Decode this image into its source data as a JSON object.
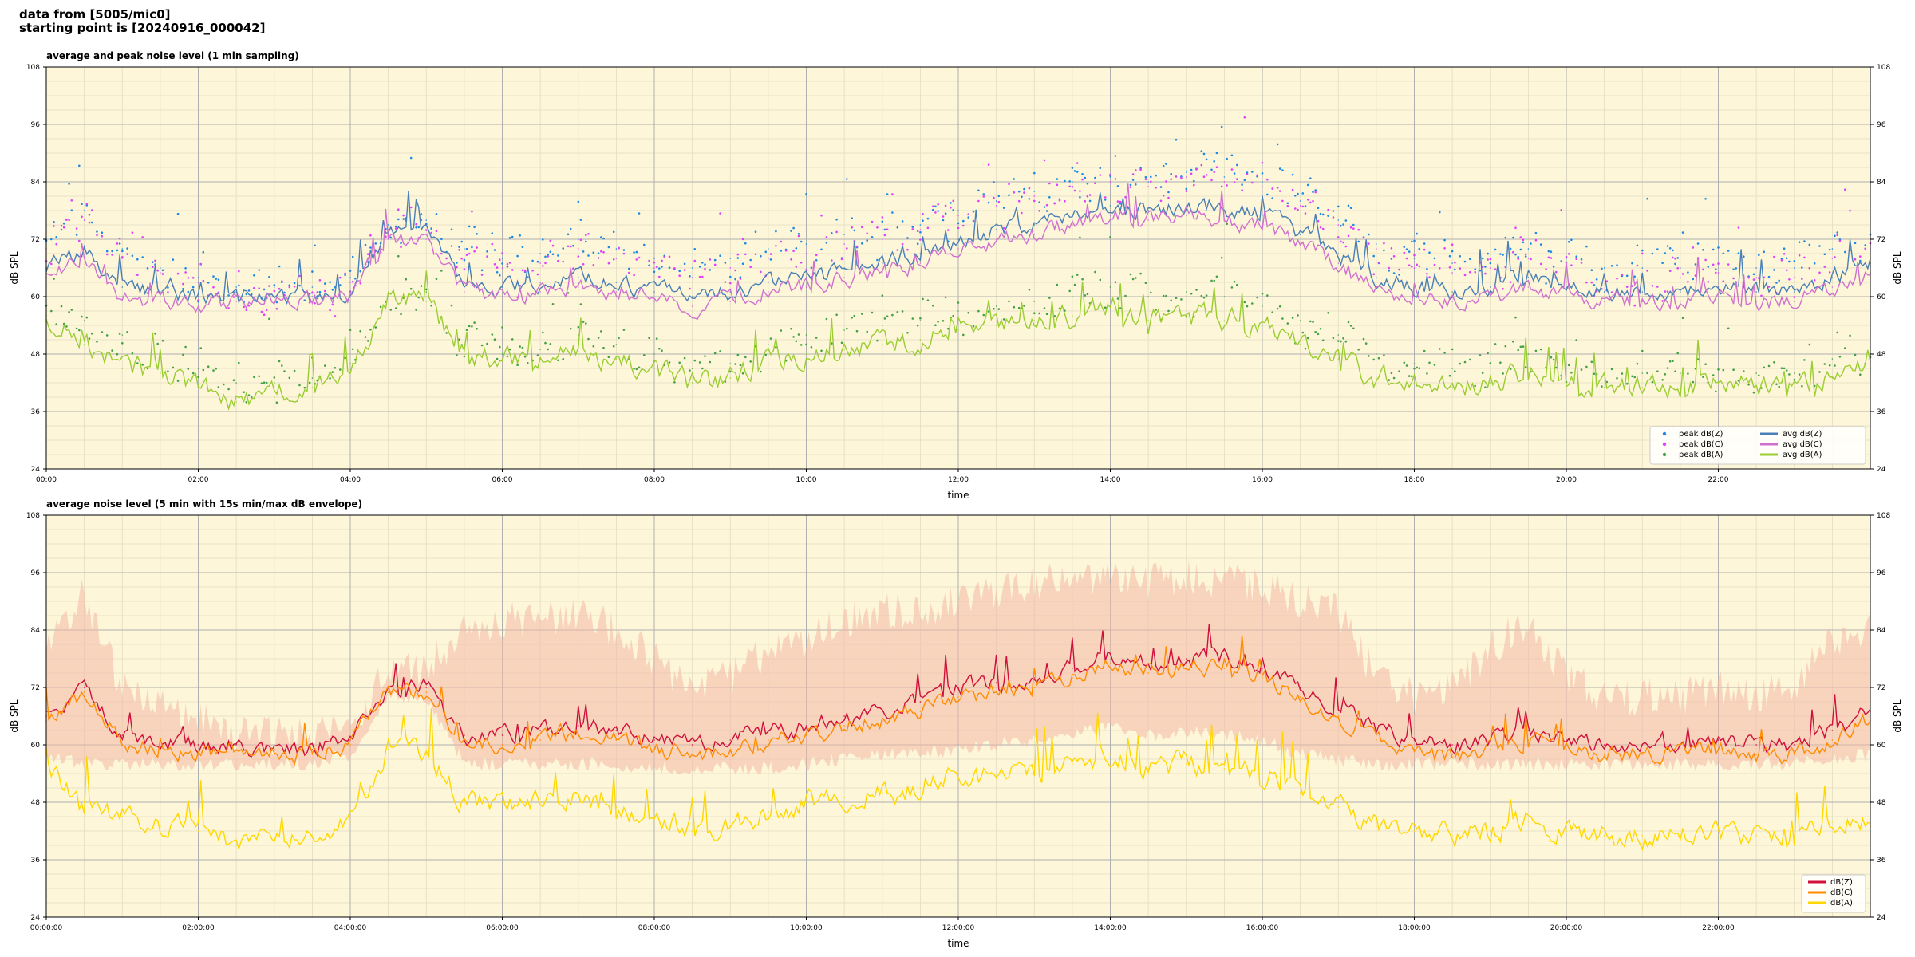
{
  "header": {
    "line1": "data from [5005/mic0]",
    "line2": "starting point is [20240916_000042]"
  },
  "colors": {
    "background": "#fdf6d8",
    "grid_major": "#b0b0b0",
    "grid_minor": "#e2dcc2",
    "peak_z": "#1e88e5",
    "peak_c": "#e040fb",
    "peak_a": "#43a047",
    "avg_z": "#4a7fb5",
    "avg_c": "#d070d0",
    "avg_a": "#9acd32",
    "db_z": "#d0103a",
    "db_c": "#ff8c00",
    "db_a": "#ffd700",
    "envelope": "#f4b8a8"
  },
  "chart_data": [
    {
      "type": "line",
      "title": "average and peak noise level (1 min sampling)",
      "xlabel": "time",
      "ylabel": "dB SPL",
      "ylabel_right": "dB SPL",
      "xlim": [
        0,
        24
      ],
      "ylim": [
        24,
        108
      ],
      "grid": true,
      "legend_position": "bottom-right",
      "legend_columns": 2,
      "yticks": [
        "24",
        "36",
        "48",
        "60",
        "72",
        "84",
        "96",
        "108"
      ],
      "xticks": [
        "00:00",
        "02:00",
        "04:00",
        "06:00",
        "08:00",
        "10:00",
        "12:00",
        "14:00",
        "16:00",
        "18:00",
        "20:00",
        "22:00"
      ],
      "x": [
        0,
        0.5,
        1,
        1.5,
        2,
        2.5,
        3,
        3.5,
        4,
        4.5,
        5,
        5.5,
        6,
        6.5,
        7,
        7.5,
        8,
        8.5,
        9,
        9.5,
        10,
        10.5,
        11,
        11.5,
        12,
        12.5,
        13,
        13.5,
        14,
        14.5,
        15,
        15.5,
        16,
        16.5,
        17,
        17.5,
        18,
        18.5,
        19,
        19.5,
        20,
        20.5,
        21,
        21.5,
        22,
        22.5,
        23,
        23.5,
        24
      ],
      "series": [
        {
          "name": "peak dB(Z)",
          "kind": "points",
          "values": [
            72,
            78,
            70,
            66,
            64,
            62,
            62,
            62,
            64,
            75,
            76,
            70,
            68,
            69,
            72,
            70,
            68,
            66,
            68,
            70,
            71,
            73,
            74,
            75,
            78,
            80,
            82,
            84,
            85,
            84,
            86,
            85,
            84,
            80,
            76,
            71,
            68,
            67,
            68,
            70,
            68,
            66,
            66,
            66,
            67,
            66,
            66,
            70,
            72
          ]
        },
        {
          "name": "peak dB(C)",
          "kind": "points",
          "values": [
            70,
            76,
            68,
            65,
            63,
            61,
            61,
            61,
            63,
            74,
            75,
            68,
            66,
            67,
            70,
            68,
            66,
            64,
            66,
            68,
            69,
            71,
            72,
            74,
            77,
            79,
            81,
            83,
            84,
            83,
            85,
            84,
            83,
            79,
            75,
            70,
            66,
            65,
            66,
            68,
            66,
            64,
            64,
            64,
            65,
            64,
            64,
            68,
            70
          ]
        },
        {
          "name": "peak dB(A)",
          "kind": "points",
          "values": [
            58,
            55,
            52,
            48,
            45,
            42,
            42,
            43,
            46,
            60,
            61,
            50,
            48,
            49,
            52,
            50,
            48,
            45,
            46,
            50,
            52,
            53,
            54,
            55,
            57,
            58,
            59,
            60,
            62,
            60,
            61,
            60,
            58,
            55,
            52,
            48,
            46,
            45,
            46,
            48,
            46,
            44,
            44,
            44,
            45,
            44,
            44,
            47,
            48
          ]
        },
        {
          "name": "avg dB(Z)",
          "kind": "line",
          "values": [
            66,
            70,
            62,
            61,
            60,
            60,
            60,
            60,
            61,
            73,
            73,
            63,
            62,
            63,
            64,
            63,
            61,
            60,
            61,
            63,
            64,
            66,
            67,
            69,
            72,
            74,
            75,
            77,
            79,
            78,
            79,
            78,
            77,
            73,
            69,
            64,
            62,
            61,
            62,
            64,
            62,
            61,
            61,
            61,
            62,
            61,
            61,
            64,
            67
          ]
        },
        {
          "name": "avg dB(C)",
          "kind": "line",
          "values": [
            64,
            68,
            60,
            59,
            58,
            59,
            59,
            59,
            60,
            72,
            72,
            61,
            60,
            61,
            62,
            61,
            59,
            58,
            59,
            61,
            62,
            64,
            65,
            67,
            70,
            72,
            73,
            75,
            77,
            76,
            77,
            76,
            75,
            71,
            67,
            62,
            60,
            59,
            60,
            62,
            60,
            59,
            59,
            59,
            60,
            59,
            59,
            62,
            65
          ]
        },
        {
          "name": "avg dB(A)",
          "kind": "line",
          "values": [
            56,
            50,
            45,
            44,
            41,
            38,
            39,
            41,
            44,
            60,
            59,
            48,
            47,
            47,
            48,
            47,
            45,
            42,
            43,
            46,
            48,
            49,
            50,
            51,
            53,
            54,
            55,
            56,
            58,
            55,
            56,
            55,
            54,
            50,
            47,
            43,
            42,
            41,
            42,
            44,
            42,
            41,
            41,
            41,
            42,
            41,
            41,
            43,
            45
          ]
        }
      ]
    },
    {
      "type": "line",
      "title": "average noise level (5 min with 15s min/max dB envelope)",
      "xlabel": "time",
      "ylabel": "dB SPL",
      "ylabel_right": "dB SPL",
      "xlim": [
        0,
        24
      ],
      "ylim": [
        24,
        108
      ],
      "grid": true,
      "legend_position": "bottom-right",
      "legend_columns": 1,
      "yticks": [
        "24",
        "36",
        "48",
        "60",
        "72",
        "84",
        "96",
        "108"
      ],
      "xticks": [
        "00:00:00",
        "02:00:00",
        "04:00:00",
        "06:00:00",
        "08:00:00",
        "10:00:00",
        "12:00:00",
        "14:00:00",
        "16:00:00",
        "18:00:00",
        "20:00:00",
        "22:00:00"
      ],
      "x": [
        0,
        0.5,
        1,
        1.5,
        2,
        2.5,
        3,
        3.5,
        4,
        4.5,
        5,
        5.5,
        6,
        6.5,
        7,
        7.5,
        8,
        8.5,
        9,
        9.5,
        10,
        10.5,
        11,
        11.5,
        12,
        12.5,
        13,
        13.5,
        14,
        14.5,
        15,
        15.5,
        16,
        16.5,
        17,
        17.5,
        18,
        18.5,
        19,
        19.5,
        20,
        20.5,
        21,
        21.5,
        22,
        22.5,
        23,
        23.5,
        24
      ],
      "envelope": {
        "min": [
          58,
          56,
          56,
          56,
          56,
          56,
          56,
          56,
          58,
          70,
          70,
          56,
          56,
          56,
          56,
          56,
          55,
          55,
          55,
          55,
          56,
          57,
          58,
          58,
          59,
          60,
          61,
          62,
          64,
          62,
          63,
          62,
          61,
          58,
          57,
          56,
          56,
          56,
          56,
          56,
          56,
          56,
          56,
          56,
          56,
          56,
          56,
          57,
          58
        ],
        "max": [
          80,
          92,
          72,
          68,
          66,
          62,
          62,
          62,
          64,
          76,
          76,
          84,
          86,
          86,
          88,
          84,
          78,
          72,
          74,
          80,
          82,
          86,
          88,
          88,
          90,
          92,
          94,
          94,
          95,
          94,
          95,
          94,
          93,
          90,
          88,
          74,
          70,
          72,
          80,
          86,
          74,
          70,
          70,
          70,
          72,
          70,
          72,
          82,
          84
        ]
      },
      "series": [
        {
          "name": "dB(Z)",
          "values": [
            66,
            72,
            62,
            61,
            60,
            60,
            59,
            59,
            61,
            72,
            72,
            62,
            62,
            63,
            64,
            63,
            61,
            60,
            61,
            63,
            64,
            66,
            67,
            69,
            72,
            73,
            74,
            76,
            79,
            77,
            78,
            78,
            76,
            72,
            68,
            63,
            61,
            60,
            61,
            63,
            61,
            60,
            60,
            60,
            61,
            60,
            60,
            63,
            67
          ]
        },
        {
          "name": "dB(C)",
          "values": [
            65,
            71,
            60,
            59,
            58,
            59,
            58,
            58,
            60,
            71,
            71,
            60,
            60,
            61,
            62,
            61,
            59,
            58,
            59,
            61,
            62,
            64,
            65,
            67,
            70,
            71,
            72,
            74,
            77,
            75,
            76,
            76,
            74,
            70,
            66,
            61,
            59,
            58,
            59,
            61,
            59,
            58,
            58,
            58,
            59,
            58,
            58,
            61,
            65
          ]
        },
        {
          "name": "dB(A)",
          "values": [
            56,
            48,
            45,
            43,
            42,
            39,
            40,
            41,
            44,
            59,
            58,
            48,
            48,
            48,
            49,
            47,
            45,
            42,
            43,
            46,
            48,
            49,
            50,
            51,
            53,
            53,
            54,
            56,
            58,
            55,
            56,
            55,
            54,
            50,
            47,
            43,
            42,
            41,
            42,
            44,
            42,
            41,
            41,
            41,
            42,
            41,
            41,
            44,
            43
          ]
        }
      ]
    }
  ]
}
